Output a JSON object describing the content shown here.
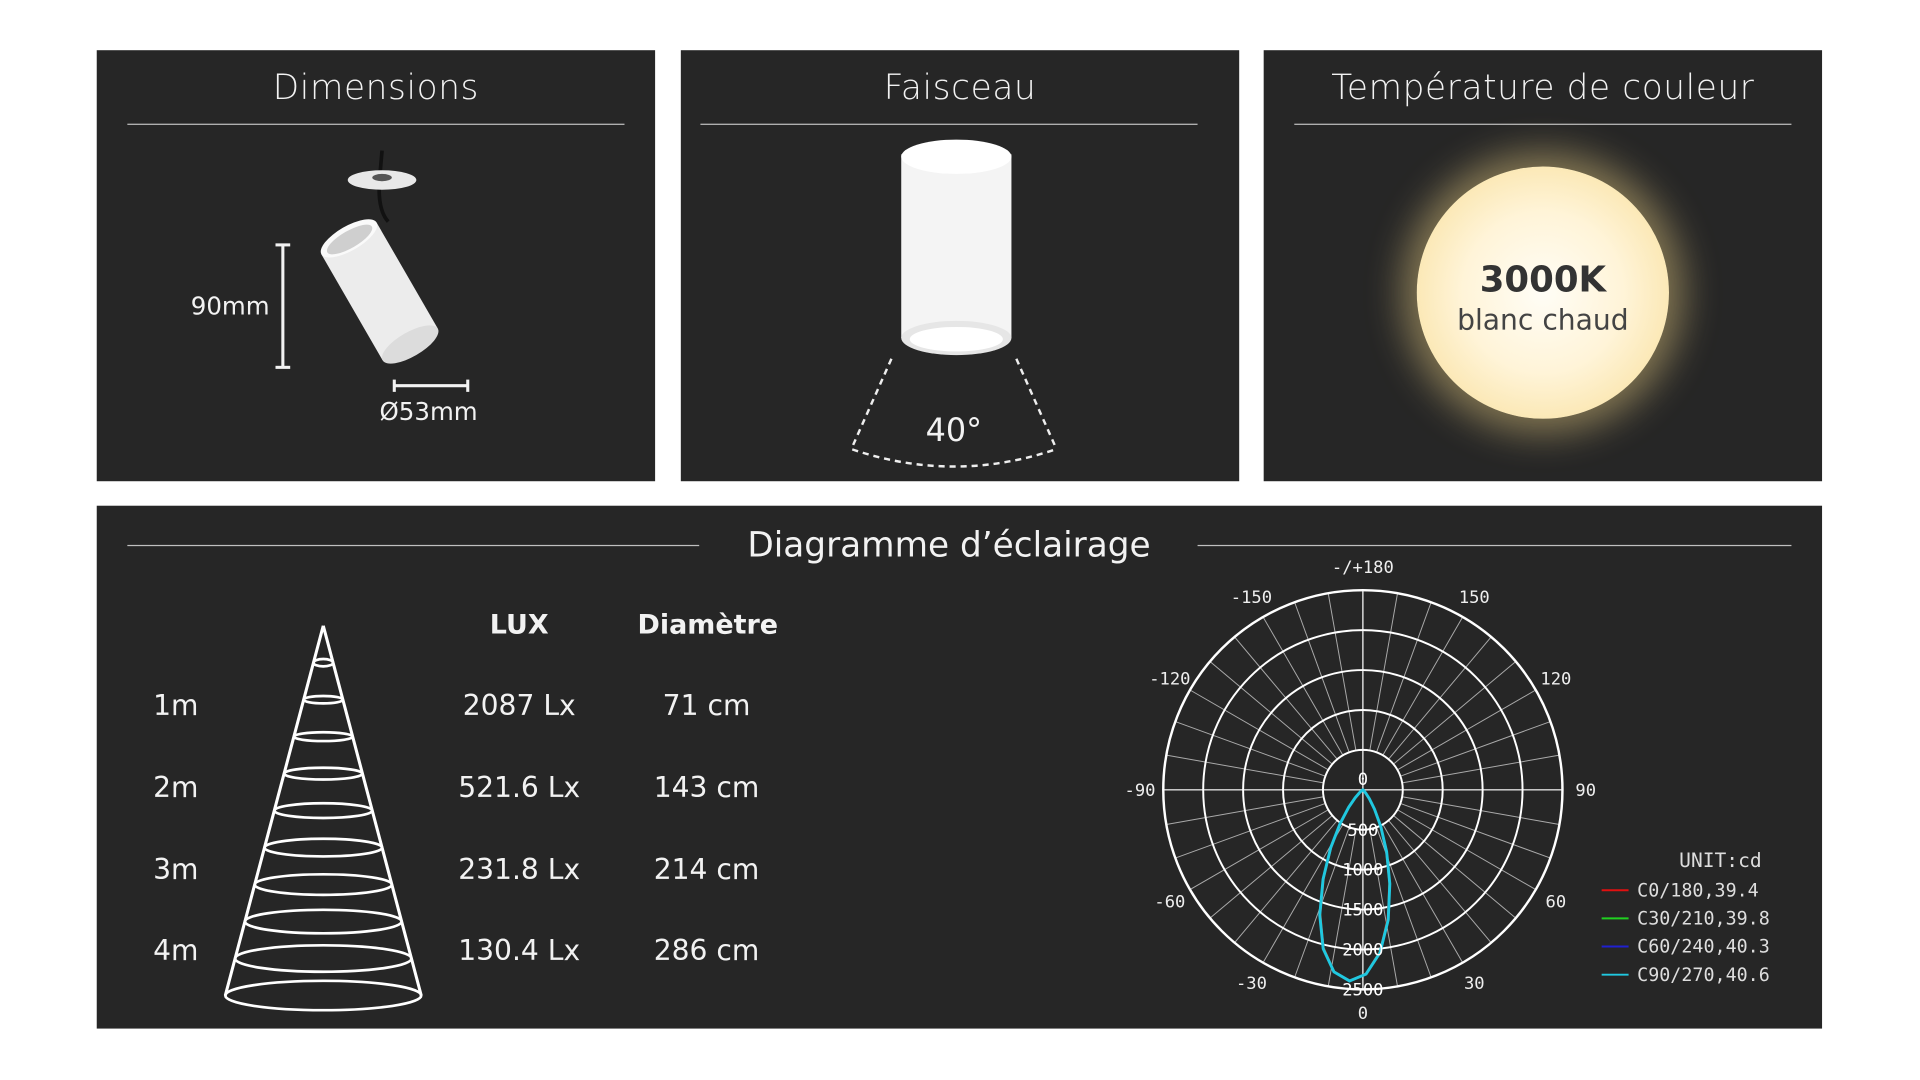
{
  "panels": {
    "dimensions": {
      "title": "Dimensions",
      "height_label": "90mm",
      "diameter_label": "Ø53mm"
    },
    "beam": {
      "title": "Faisceau",
      "angle_label": "40°"
    },
    "color_temp": {
      "title": "Température de couleur",
      "value": "3000K",
      "description": "blanc chaud",
      "glow_color": "#f7d98a"
    }
  },
  "lighting": {
    "title": "Diagramme d’éclairage",
    "table": {
      "headers": {
        "lux": "LUX",
        "diameter": "Diamètre"
      },
      "rows": [
        {
          "distance": "1m",
          "lux": "2087 Lx",
          "diameter": "71 cm"
        },
        {
          "distance": "2m",
          "lux": "521.6 Lx",
          "diameter": "143 cm"
        },
        {
          "distance": "3m",
          "lux": "231.8 Lx",
          "diameter": "214 cm"
        },
        {
          "distance": "4m",
          "lux": "130.4 Lx",
          "diameter": "286 cm"
        }
      ]
    }
  },
  "chart_data": {
    "type": "polar",
    "unit_label": "UNIT:cd",
    "radial_ticks": [
      "0",
      "500",
      "1000",
      "1500",
      "2000",
      "2500"
    ],
    "radial_values": [
      0,
      500,
      1000,
      1500,
      2000,
      2500
    ],
    "angle_ticks": [
      {
        "angle": 180,
        "label": "-/+180"
      },
      {
        "angle": -150,
        "label": "-150"
      },
      {
        "angle": 150,
        "label": "150"
      },
      {
        "angle": -120,
        "label": "-120"
      },
      {
        "angle": 120,
        "label": "120"
      },
      {
        "angle": -90,
        "label": "-90"
      },
      {
        "angle": 90,
        "label": "90"
      },
      {
        "angle": -60,
        "label": "-60"
      },
      {
        "angle": 60,
        "label": "60"
      },
      {
        "angle": -30,
        "label": "-30"
      },
      {
        "angle": 30,
        "label": "30"
      },
      {
        "angle": 0,
        "label": "0"
      }
    ],
    "rlim": [
      0,
      2500
    ],
    "grid": true,
    "legend_position": "bottom-right",
    "angles": [
      -60,
      -55,
      -50,
      -45,
      -40,
      -35,
      -30,
      -25,
      -20,
      -15,
      -10,
      -5,
      0,
      5,
      10,
      15,
      20,
      25,
      30,
      35,
      40,
      45,
      50,
      55,
      60
    ],
    "series": [
      {
        "name": "C0/180,39.4",
        "color": "#e01010",
        "values": [
          1,
          5,
          19,
          53,
          131,
          270,
          491,
          810,
          1200,
          1635,
          2036,
          2301,
          2400,
          2301,
          2036,
          1635,
          1200,
          810,
          491,
          270,
          131,
          53,
          19,
          5,
          1
        ]
      },
      {
        "name": "C30/210,39.8",
        "color": "#20d020",
        "values": [
          1,
          5,
          19,
          54,
          133,
          274,
          498,
          818,
          1210,
          1645,
          2042,
          2304,
          2400,
          2304,
          2042,
          1645,
          1210,
          818,
          498,
          274,
          133,
          54,
          19,
          5,
          1
        ]
      },
      {
        "name": "C60/240,40.3",
        "color": "#2020d0",
        "values": [
          1,
          6,
          20,
          56,
          136,
          279,
          505,
          826,
          1220,
          1655,
          2048,
          2307,
          2400,
          2307,
          2048,
          1655,
          1220,
          826,
          505,
          279,
          136,
          56,
          20,
          6,
          1
        ]
      },
      {
        "name": "C90/270,40.6",
        "color": "#20c8e0",
        "values": [
          1,
          6,
          21,
          57,
          138,
          282,
          510,
          832,
          1226,
          1660,
          2051,
          2309,
          2400,
          2309,
          2051,
          1660,
          1226,
          832,
          510,
          282,
          138,
          57,
          21,
          6,
          1
        ]
      }
    ]
  }
}
